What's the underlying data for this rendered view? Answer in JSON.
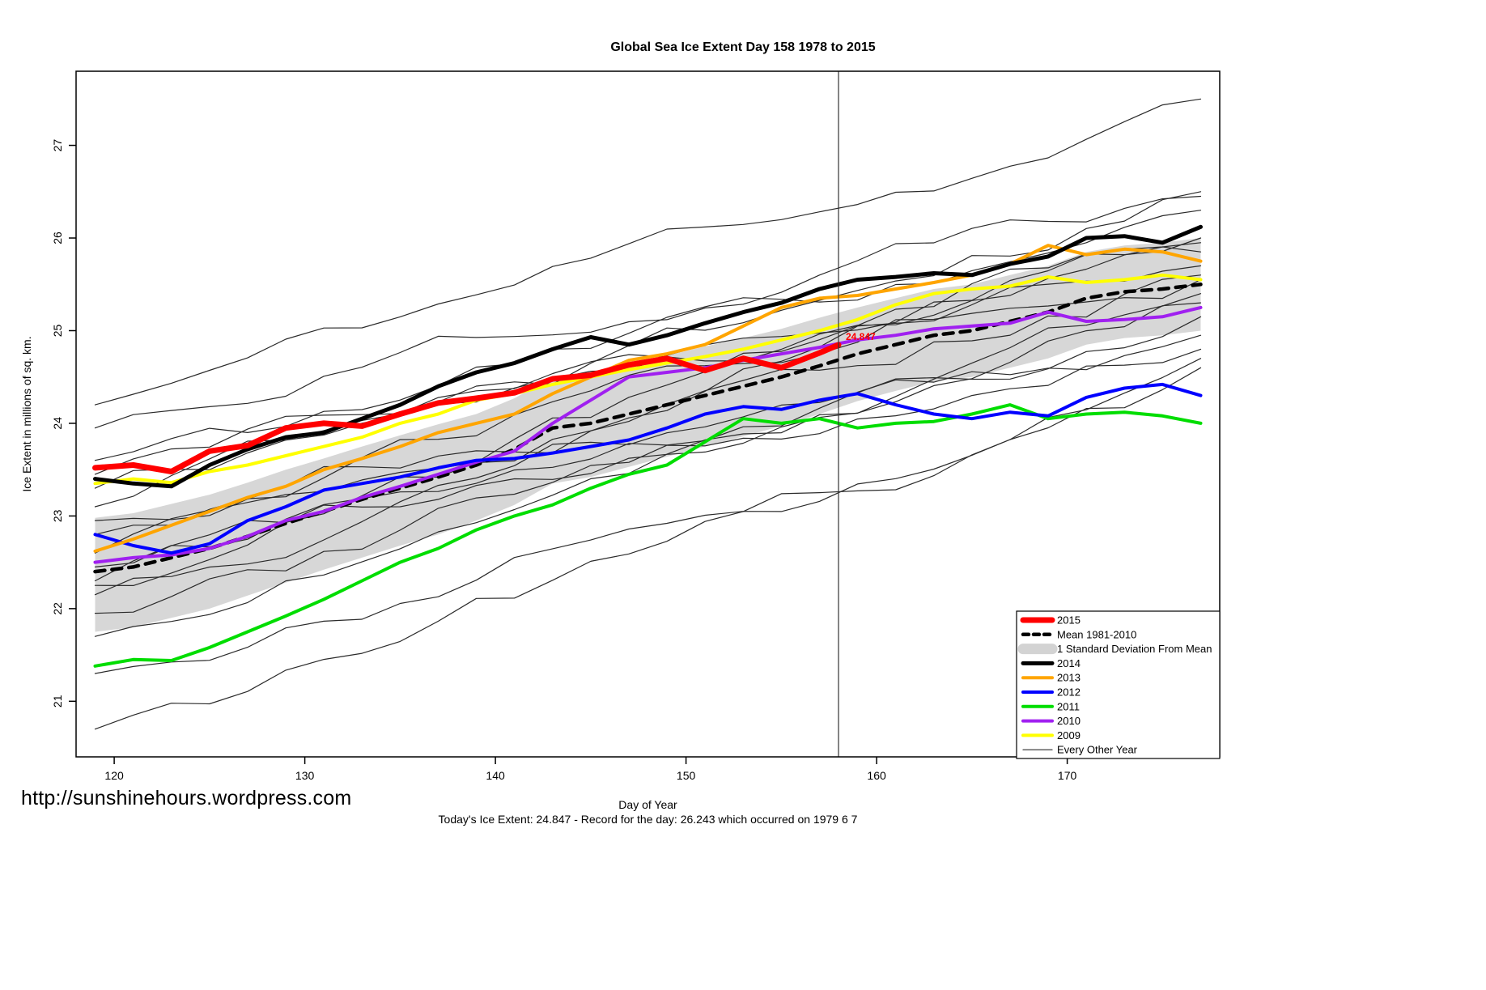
{
  "header": {
    "title": "Global Sea Ice Extent Day 158 1978 to 2015"
  },
  "footer": {
    "url": "http://sunshinehours.wordpress.com",
    "note": "Today's Ice Extent: 24.847  - Record for the day: 26.243 which occurred on 1979 6 7"
  },
  "chart_data": {
    "type": "line",
    "title": "Global Sea Ice Extent Day 158 1978 to 2015",
    "xlabel": "Day of Year",
    "ylabel": "Ice Extent in millions of sq. km.",
    "xlim": [
      118,
      178
    ],
    "ylim": [
      20.4,
      27.8
    ],
    "xticks": [
      120,
      130,
      140,
      150,
      160,
      170
    ],
    "yticks": [
      21,
      22,
      23,
      24,
      25,
      26,
      27
    ],
    "grid": false,
    "vline": {
      "x": 158,
      "color": "#333333"
    },
    "annotation": {
      "x": 158,
      "y": 24.847,
      "label": "24.847",
      "color": "#ff0000"
    },
    "x": [
      119,
      121,
      123,
      125,
      127,
      129,
      131,
      133,
      135,
      137,
      139,
      141,
      143,
      145,
      147,
      149,
      151,
      153,
      155,
      157,
      159,
      161,
      163,
      165,
      167,
      169,
      171,
      173,
      175,
      177
    ],
    "band": {
      "label": "1 Standard Deviation From Mean",
      "color": "#d3d3d3",
      "upper": [
        22.98,
        23.03,
        23.13,
        23.23,
        23.36,
        23.5,
        23.62,
        23.75,
        23.87,
        23.99,
        24.1,
        24.27,
        24.5,
        24.55,
        24.63,
        24.73,
        24.83,
        24.92,
        25.02,
        25.14,
        25.25,
        25.35,
        25.45,
        25.5,
        25.6,
        25.7,
        25.85,
        25.92,
        25.95,
        26.0
      ],
      "lower": [
        21.75,
        21.8,
        21.9,
        22.0,
        22.14,
        22.28,
        22.42,
        22.55,
        22.68,
        22.8,
        22.95,
        23.12,
        23.35,
        23.42,
        23.53,
        23.64,
        23.75,
        23.86,
        23.97,
        24.1,
        24.24,
        24.35,
        24.45,
        24.5,
        24.6,
        24.7,
        24.85,
        24.92,
        24.95,
        25.0
      ]
    },
    "series": [
      {
        "name": "Mean 1981-2010",
        "color": "#000000",
        "width": 4.5,
        "dash": "12,9",
        "y": [
          22.4,
          22.45,
          22.55,
          22.65,
          22.78,
          22.92,
          23.05,
          23.18,
          23.3,
          23.42,
          23.55,
          23.72,
          23.95,
          24.0,
          24.1,
          24.2,
          24.3,
          24.4,
          24.5,
          24.62,
          24.75,
          24.85,
          24.95,
          25.0,
          25.1,
          25.2,
          25.35,
          25.42,
          25.45,
          25.5
        ]
      },
      {
        "name": "2009",
        "color": "#ffff00",
        "width": 4,
        "y": [
          23.35,
          23.4,
          23.36,
          23.48,
          23.55,
          23.65,
          23.75,
          23.85,
          24.0,
          24.1,
          24.25,
          24.32,
          24.42,
          24.5,
          24.58,
          24.65,
          24.72,
          24.8,
          24.9,
          25.0,
          25.12,
          25.28,
          25.4,
          25.45,
          25.48,
          25.58,
          25.52,
          25.55,
          25.6,
          25.55
        ]
      },
      {
        "name": "2010",
        "color": "#a020f0",
        "width": 4,
        "y": [
          22.5,
          22.55,
          22.58,
          22.65,
          22.78,
          22.95,
          23.05,
          23.2,
          23.32,
          23.45,
          23.58,
          23.7,
          24.0,
          24.25,
          24.5,
          24.55,
          24.6,
          24.68,
          24.75,
          24.82,
          24.9,
          24.95,
          25.02,
          25.05,
          25.08,
          25.2,
          25.1,
          25.12,
          25.15,
          25.25
        ]
      },
      {
        "name": "2011",
        "color": "#00dd00",
        "width": 4,
        "y": [
          21.38,
          21.45,
          21.44,
          21.58,
          21.75,
          21.92,
          22.1,
          22.3,
          22.5,
          22.65,
          22.85,
          23.0,
          23.12,
          23.3,
          23.45,
          23.55,
          23.8,
          24.05,
          24.0,
          24.05,
          23.95,
          24.0,
          24.02,
          24.1,
          24.2,
          24.05,
          24.1,
          24.12,
          24.08,
          24.0
        ]
      },
      {
        "name": "2012",
        "color": "#0000ff",
        "width": 4,
        "y": [
          22.8,
          22.68,
          22.6,
          22.7,
          22.95,
          23.1,
          23.28,
          23.35,
          23.42,
          23.52,
          23.6,
          23.62,
          23.68,
          23.75,
          23.82,
          23.95,
          24.1,
          24.18,
          24.15,
          24.25,
          24.32,
          24.2,
          24.1,
          24.05,
          24.12,
          24.08,
          24.28,
          24.38,
          24.42,
          24.3
        ]
      },
      {
        "name": "2013",
        "color": "#ffa500",
        "width": 4,
        "y": [
          22.62,
          22.75,
          22.9,
          23.05,
          23.2,
          23.32,
          23.5,
          23.62,
          23.75,
          23.9,
          24.0,
          24.1,
          24.32,
          24.5,
          24.68,
          24.75,
          24.85,
          25.05,
          25.25,
          25.35,
          25.38,
          25.45,
          25.52,
          25.6,
          25.72,
          25.92,
          25.82,
          25.88,
          25.85,
          25.75
        ]
      },
      {
        "name": "2014",
        "color": "#000000",
        "width": 5,
        "y": [
          23.4,
          23.35,
          23.32,
          23.55,
          23.72,
          23.85,
          23.9,
          24.05,
          24.2,
          24.4,
          24.55,
          24.65,
          24.8,
          24.93,
          24.85,
          24.95,
          25.08,
          25.2,
          25.3,
          25.45,
          25.55,
          25.58,
          25.62,
          25.6,
          25.72,
          25.8,
          26.0,
          26.02,
          25.95,
          26.12
        ]
      },
      {
        "name": "2015",
        "color": "#ff0000",
        "width": 7,
        "x": [
          119,
          121,
          123,
          125,
          127,
          129,
          131,
          133,
          135,
          137,
          139,
          141,
          143,
          145,
          147,
          149,
          151,
          153,
          155,
          157,
          158
        ],
        "y": [
          23.52,
          23.55,
          23.48,
          23.7,
          23.76,
          23.95,
          24.0,
          23.97,
          24.1,
          24.22,
          24.27,
          24.33,
          24.48,
          24.52,
          24.63,
          24.7,
          24.57,
          24.7,
          24.6,
          24.76,
          24.847
        ]
      }
    ],
    "background_series": {
      "label": "Every Other Year",
      "color": "#2a2a2a",
      "width": 1.2,
      "lines": [
        {
          "start": 24.2,
          "end": 27.5,
          "seed": 11
        },
        {
          "start": 23.95,
          "end": 26.45,
          "seed": 22
        },
        {
          "start": 23.6,
          "end": 26.3,
          "seed": 33
        },
        {
          "start": 23.45,
          "end": 25.85,
          "seed": 195
        },
        {
          "start": 23.3,
          "end": 26.5,
          "seed": 44
        },
        {
          "start": 23.1,
          "end": 25.95,
          "seed": 55
        },
        {
          "start": 22.95,
          "end": 25.7,
          "seed": 66
        },
        {
          "start": 22.8,
          "end": 25.55,
          "seed": 77
        },
        {
          "start": 22.6,
          "end": 25.6,
          "seed": 88
        },
        {
          "start": 22.45,
          "end": 25.3,
          "seed": 99
        },
        {
          "start": 22.3,
          "end": 24.95,
          "seed": 111
        },
        {
          "start": 22.25,
          "end": 26.0,
          "seed": 183
        },
        {
          "start": 22.15,
          "end": 25.15,
          "seed": 123
        },
        {
          "start": 21.95,
          "end": 24.8,
          "seed": 135
        },
        {
          "start": 21.7,
          "end": 25.4,
          "seed": 147
        },
        {
          "start": 21.3,
          "end": 24.6,
          "seed": 159
        },
        {
          "start": 20.7,
          "end": 24.7,
          "seed": 171
        }
      ]
    },
    "legend": {
      "position": "bottom-right",
      "items": [
        {
          "label": "2015",
          "color": "#ff0000",
          "width": 7
        },
        {
          "label": "Mean 1981-2010",
          "color": "#000000",
          "width": 4.5,
          "dash": "7,6"
        },
        {
          "label": "1 Standard Deviation From Mean",
          "color": "#d3d3d3",
          "width": 13
        },
        {
          "label": "2014",
          "color": "#000000",
          "width": 5
        },
        {
          "label": "2013",
          "color": "#ffa500",
          "width": 4
        },
        {
          "label": "2012",
          "color": "#0000ff",
          "width": 4
        },
        {
          "label": "2011",
          "color": "#00dd00",
          "width": 4
        },
        {
          "label": "2010",
          "color": "#a020f0",
          "width": 4
        },
        {
          "label": "2009",
          "color": "#ffff00",
          "width": 4
        },
        {
          "label": "Every Other Year",
          "color": "#2a2a2a",
          "width": 1.2
        }
      ]
    }
  }
}
